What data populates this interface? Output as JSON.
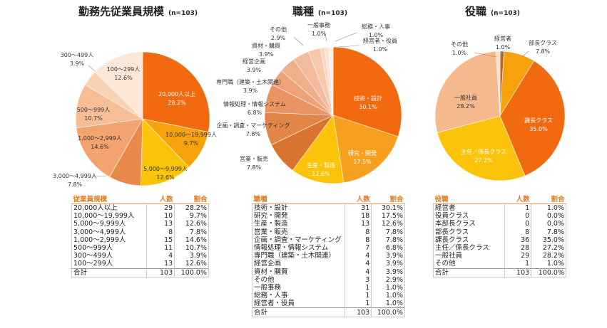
{
  "chart_data": [
    {
      "type": "pie",
      "title": "勤務先従業員規模",
      "n_label": "(n=103)",
      "categories": [
        "20,000人以上",
        "10,000〜19,999人",
        "5,000〜9,999人",
        "3,000〜4,999人",
        "1,000〜2,999人",
        "500〜999人",
        "300〜499人",
        "100〜299人"
      ],
      "values": [
        28.2,
        9.7,
        12.6,
        7.8,
        14.6,
        10.7,
        3.9,
        12.6
      ],
      "value_labels": [
        "28.2%",
        "9.7%",
        "12.6%",
        "7.8%",
        "14.6%",
        "10.7%",
        "3.9%",
        "12.6%"
      ],
      "colors": [
        "#F26A0F",
        "#F7A20B",
        "#FBC40A",
        "#E98A4A",
        "#F3A36E",
        "#F7BE95",
        "#FAD3B4",
        "#FDE7D6"
      ]
    },
    {
      "type": "pie",
      "title": "職種",
      "n_label": "(n=103)",
      "categories": [
        "技術・設計",
        "研究・開発",
        "生産・製造",
        "営業・販売",
        "企画・調査・マーケティング",
        "情報処理・情報システム",
        "専門職（建築・土木関連）",
        "経営企画",
        "資材・購買",
        "その他",
        "一般事務",
        "総務・人事",
        "経営者・役員"
      ],
      "values": [
        30.1,
        17.5,
        12.6,
        7.8,
        7.8,
        6.8,
        3.9,
        3.9,
        3.9,
        2.9,
        1.0,
        1.0,
        1.0
      ],
      "value_labels": [
        "30.1%",
        "17.5%",
        "12.6%",
        "7.8%",
        "7.8%",
        "6.8%",
        "3.9%",
        "3.9%",
        "3.9%",
        "2.9%",
        "1.0%",
        "1.0%",
        "1.0%"
      ],
      "colors": [
        "#F26A0F",
        "#F7A020",
        "#FBC40A",
        "#D9742E",
        "#E28549",
        "#E99462",
        "#EDA27A",
        "#F0AF8B",
        "#F3BB9C",
        "#F6C8AE",
        "#F9D6C1",
        "#FBE2D3",
        "#FDEEE5"
      ]
    },
    {
      "type": "pie",
      "title": "役職",
      "n_label": "(n=103)",
      "categories": [
        "経営者",
        "役員クラス",
        "本部長クラス",
        "部長クラス",
        "課長クラス",
        "主任／係長クラス",
        "一般社員",
        "その他"
      ],
      "values": [
        1.0,
        0.0,
        0.0,
        7.8,
        35.0,
        27.2,
        28.2,
        1.0
      ],
      "value_labels": [
        "1.0%",
        "0.0%",
        "0.0%",
        "7.8%",
        "35.0%",
        "27.2%",
        "28.2%",
        "1.0%"
      ],
      "colors": [
        "#B8652A",
        "#C9743A",
        "#D8864A",
        "#F7A20B",
        "#F26A0F",
        "#FBC40A",
        "#F4B98C",
        "#FBDCC4"
      ]
    }
  ],
  "tables": [
    {
      "headers": [
        "従業員規模",
        "人数",
        "割合"
      ],
      "rows": [
        [
          "20,000人以上",
          "29",
          "28.2%"
        ],
        [
          "10,000〜19,999人",
          "10",
          "9.7%"
        ],
        [
          "5,000〜9,999人",
          "13",
          "12.6%"
        ],
        [
          "3,000〜4,999人",
          "8",
          "7.8%"
        ],
        [
          "1,000〜2,999人",
          "15",
          "14.6%"
        ],
        [
          "500〜999人",
          "11",
          "10.7%"
        ],
        [
          "300〜499人",
          "4",
          "3.9%"
        ],
        [
          "100〜299人",
          "13",
          "12.6%"
        ]
      ],
      "total": [
        "合計",
        "103",
        "100.0%"
      ]
    },
    {
      "headers": [
        "職種",
        "人数",
        "割合"
      ],
      "rows": [
        [
          "技術・設計",
          "31",
          "30.1%"
        ],
        [
          "研究・開発",
          "18",
          "17.5%"
        ],
        [
          "生産・製造",
          "13",
          "12.6%"
        ],
        [
          "営業・販売",
          "8",
          "7.8%"
        ],
        [
          "企画・調査・マーケティング",
          "8",
          "7.8%"
        ],
        [
          "情報処理・情報システム",
          "7",
          "6.8%"
        ],
        [
          "専門職（建築・土木関連）",
          "4",
          "3.9%"
        ],
        [
          "経営企画",
          "4",
          "3.9%"
        ],
        [
          "資材・購買",
          "4",
          "3.9%"
        ],
        [
          "その他",
          "3",
          "2.9%"
        ],
        [
          "一般事務",
          "1",
          "1.0%"
        ],
        [
          "総務・人事",
          "1",
          "1.0%"
        ],
        [
          "経営者・役員",
          "1",
          "1.0%"
        ]
      ],
      "total": [
        "合計",
        "103",
        "100.0%"
      ]
    },
    {
      "headers": [
        "役職",
        "人数",
        "割合"
      ],
      "rows": [
        [
          "経営者",
          "1",
          "1.0%"
        ],
        [
          "役員クラス",
          "0",
          "0.0%"
        ],
        [
          "本部長クラス",
          "0",
          "0.0%"
        ],
        [
          "部長クラス",
          "8",
          "7.8%"
        ],
        [
          "課長クラス",
          "36",
          "35.0%"
        ],
        [
          "主任／係長クラス",
          "28",
          "27.2%"
        ],
        [
          "一般社員",
          "29",
          "28.2%"
        ],
        [
          "その他",
          "1",
          "1.0%"
        ]
      ],
      "total": [
        "合計",
        "103",
        "100.0%"
      ]
    }
  ]
}
